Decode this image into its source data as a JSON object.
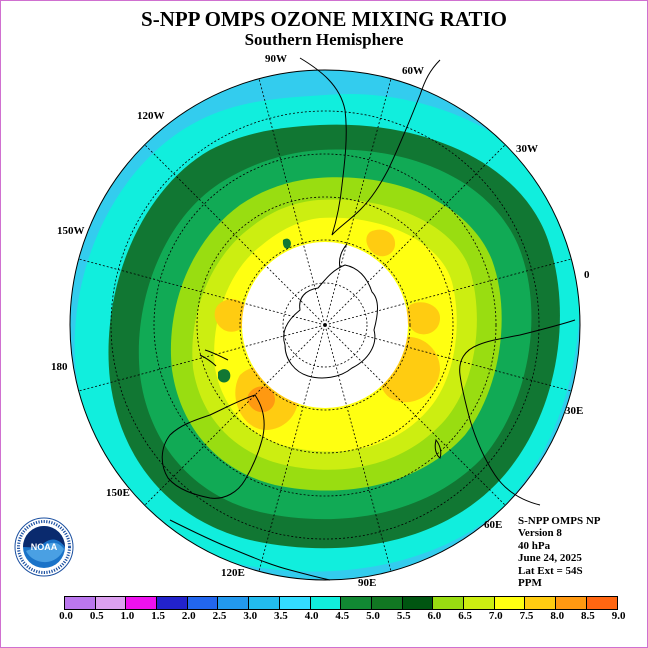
{
  "title": "S-NPP OMPS OZONE MIXING RATIO",
  "subtitle": "Southern Hemisphere",
  "lon_labels": {
    "l90w": "90W",
    "l60w": "60W",
    "l30w": "30W",
    "l0": "0",
    "l30e": "30E",
    "l60e": "60E",
    "l90e": "90E",
    "l120e": "120E",
    "l150e": "150E",
    "l180": "180",
    "l150w": "150W",
    "l120w": "120W"
  },
  "info": {
    "line1": "S-NPP OMPS NP",
    "line2": "Version 8",
    "line3": "40 hPa",
    "line4": "June 24, 2025",
    "line5": "Lat Ext = 54S",
    "line6": "PPM"
  },
  "logo": {
    "text": "NOAA",
    "ring_text": "NATIONAL OCEANIC AND ATMOSPHERIC ADMINISTRATION · U.S. DEPARTMENT OF COMMERCE"
  },
  "colorbar": {
    "labels": [
      "0.0",
      "0.5",
      "1.0",
      "1.5",
      "2.0",
      "2.5",
      "3.0",
      "3.5",
      "4.0",
      "4.5",
      "5.0",
      "5.5",
      "6.0",
      "6.5",
      "7.0",
      "7.5",
      "8.0",
      "8.5",
      "9.0"
    ],
    "colors": [
      "#bb77ee",
      "#dda0f0",
      "#ee11ee",
      "#2222cc",
      "#2266ee",
      "#2299ee",
      "#22bbee",
      "#33ddff",
      "#11eedd",
      "#118833",
      "#117722",
      "#005511",
      "#99dd11",
      "#ccee11",
      "#ffff11",
      "#ffcc11",
      "#ff9911",
      "#ff6611",
      "#ee0000",
      "#996644"
    ]
  },
  "map_colors": {
    "c3_5": "#33ccee",
    "c4_0": "#11eedd",
    "c4_5": "#11aa55",
    "c5_0": "#117733",
    "c5_5": "#99dd11",
    "c6_0": "#ccee11",
    "c6_5": "#ffff11",
    "c7_0": "#ffcc11",
    "c7_5": "#ff9911",
    "nodata": "#ffffff"
  }
}
